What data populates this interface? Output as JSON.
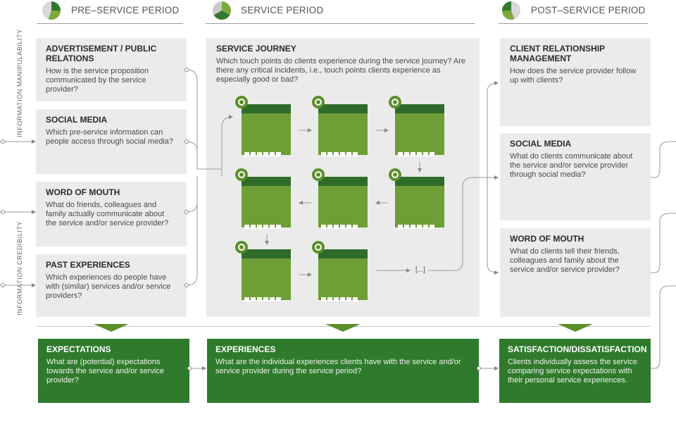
{
  "phases": {
    "pre": "PRE–SERVICE PERIOD",
    "service": "SERVICE PERIOD",
    "post": "POST–SERVICE PERIOD"
  },
  "side_labels": {
    "top": "INFORMATION MANIPULABILITY",
    "bottom": "INFORMATION CREDIBILITY"
  },
  "pre_boxes": [
    {
      "title": "ADVERTISEMENT / PUBLIC RELATIONS",
      "text": "How is the service proposition communicated by the service provider?"
    },
    {
      "title": "SOCIAL MEDIA",
      "text": "Which pre-service information can people access through social media?"
    },
    {
      "title": "WORD OF MOUTH",
      "text": "What do friends, colleagues and family actually communicate about the service and/or service provider?"
    },
    {
      "title": "PAST EXPERIENCES",
      "text": "Which experiences do people have with (similar) services and/or service providers?"
    }
  ],
  "journey": {
    "title": "SERVICE JOURNEY",
    "text": "Which touch points do clients experience during the service journey? Are there any critical incidents, i.e., touch points clients experience as especially good or bad?",
    "ellipsis": "[...]"
  },
  "post_boxes": [
    {
      "title": "CLIENT RELATIONSHIP MANAGEMENT",
      "text": "How does the service provider follow up with clients?"
    },
    {
      "title": "SOCIAL MEDIA",
      "text": "What do clients communicate about the service and/or service provider through social media?"
    },
    {
      "title": "WORD OF MOUTH",
      "text": "What do clients tell their friends, colleagues and family about the service and/or service provider?"
    }
  ],
  "outcomes": [
    {
      "title": "EXPECTATIONS",
      "text": "What are (potential) expectations towards the service and/or service provider?"
    },
    {
      "title": "EXPERIENCES",
      "text": "What are the individual experiences clients have with the service and/or service provider during the service period?"
    },
    {
      "title": "SATISFACTION/DISSATISFACTION",
      "text": "Clients individually assess the service comparing service expectations with their personal service experiences."
    }
  ],
  "colors": {
    "dark_green": "#2f7a2d",
    "screen_green": "#6e9e35",
    "header_green": "#2f6b2a",
    "box_gray": "#ebebeb"
  }
}
